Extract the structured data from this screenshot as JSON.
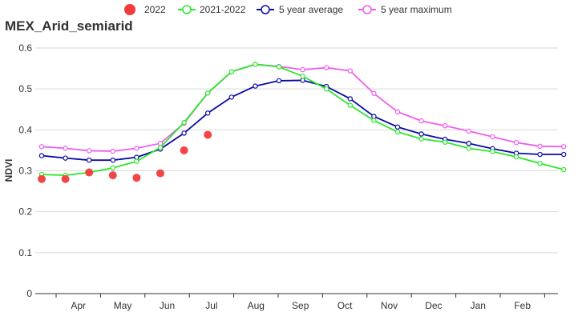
{
  "chart_data": {
    "type": "line",
    "title": "MEX_Arid_semiarid",
    "xlabel": "",
    "ylabel": "NDVI",
    "ylim": [
      0,
      0.6
    ],
    "yticks": [
      "0",
      "0.1",
      "0.2",
      "0.3",
      "0.4",
      "0.5",
      "0.6"
    ],
    "month_labels": [
      "Apr",
      "May",
      "Jun",
      "Jul",
      "Aug",
      "Sep",
      "Oct",
      "Nov",
      "Dec",
      "Jan",
      "Feb"
    ],
    "grid": true,
    "legend_position": "top",
    "series": [
      {
        "name": "2022",
        "style": "dots",
        "color": "#f23b3b",
        "values": [
          0.28,
          0.28,
          0.296,
          0.289,
          0.283,
          0.294,
          0.35,
          0.388
        ]
      },
      {
        "name": "2021-2022",
        "style": "line",
        "color": "#2be82b",
        "values": [
          0.291,
          0.289,
          0.296,
          0.307,
          0.323,
          0.357,
          0.418,
          0.49,
          0.542,
          0.56,
          0.554,
          0.531,
          0.5,
          0.46,
          0.423,
          0.395,
          0.378,
          0.37,
          0.355,
          0.347,
          0.334,
          0.318,
          0.303
        ]
      },
      {
        "name": "5 year average",
        "style": "line",
        "color": "#0a0aa8",
        "values": [
          0.337,
          0.331,
          0.326,
          0.326,
          0.333,
          0.353,
          0.392,
          0.441,
          0.48,
          0.507,
          0.52,
          0.521,
          0.506,
          0.476,
          0.433,
          0.407,
          0.39,
          0.377,
          0.367,
          0.354,
          0.343,
          0.34,
          0.34
        ]
      },
      {
        "name": "5 year maximum",
        "style": "line",
        "color": "#f05cf0",
        "values": [
          0.359,
          0.355,
          0.349,
          0.348,
          0.355,
          0.367,
          0.416,
          0.49,
          0.542,
          0.56,
          0.555,
          0.547,
          0.552,
          0.544,
          0.489,
          0.444,
          0.422,
          0.41,
          0.397,
          0.383,
          0.369,
          0.36,
          0.359
        ]
      }
    ]
  }
}
